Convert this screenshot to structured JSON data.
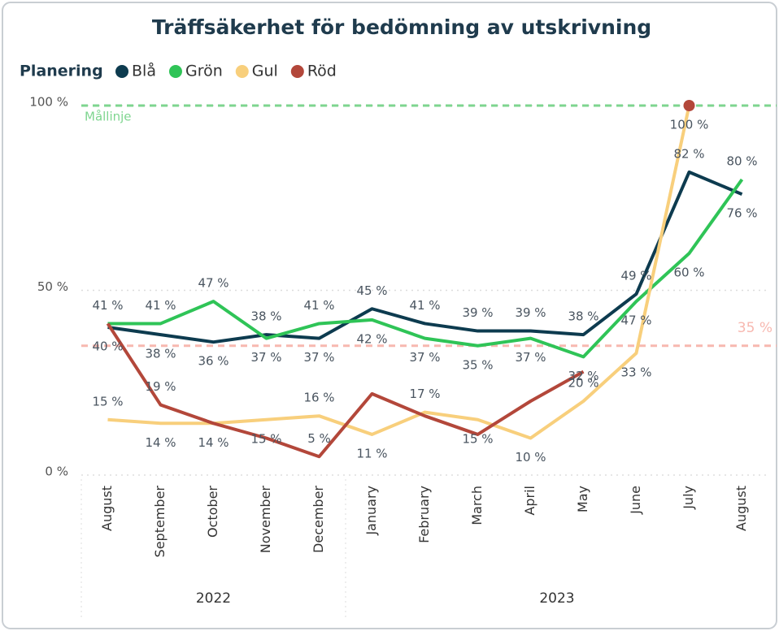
{
  "chart_data": {
    "type": "line",
    "title": "Träffsäkerhet för bedömning av utskrivning",
    "legend_title": "Planering",
    "categories": [
      "August",
      "September",
      "October",
      "November",
      "December",
      "January",
      "February",
      "March",
      "April",
      "May",
      "June",
      "July",
      "August"
    ],
    "year_groups": [
      {
        "label": "2022",
        "count": 5
      },
      {
        "label": "2023",
        "count": 8
      }
    ],
    "ylim": [
      0,
      100
    ],
    "yticks": [
      {
        "value": 0,
        "label": "0 %"
      },
      {
        "value": 50,
        "label": "50 %"
      },
      {
        "value": 100,
        "label": "100 %"
      }
    ],
    "grid": true,
    "reference_lines": [
      {
        "value": 100,
        "label": "Mållinje",
        "color": "#7ed58f"
      },
      {
        "value": 35,
        "label": "35 %",
        "color": "#f7b8b0"
      }
    ],
    "series": [
      {
        "name": "Blå",
        "color": "#0d3b4f",
        "values": [
          40,
          38,
          36,
          38,
          37,
          45,
          41,
          39,
          39,
          38,
          49,
          82,
          76
        ],
        "value_labels": [
          "40 %",
          "38 %",
          "36 %",
          "38 %",
          "37 %",
          "45 %",
          "41 %",
          "39 %",
          "39 %",
          "38 %",
          "49 %",
          "82 %",
          "76 %"
        ]
      },
      {
        "name": "Grön",
        "color": "#2fc457",
        "values": [
          41,
          41,
          47,
          37,
          41,
          42,
          37,
          35,
          37,
          32,
          47,
          60,
          80
        ],
        "value_labels": [
          "41 %",
          "41 %",
          "47 %",
          "37 %",
          "41 %",
          "42 %",
          "37 %",
          "35 %",
          "37 %",
          "32 %",
          "47 %",
          "60 %",
          "80 %"
        ]
      },
      {
        "name": "Gul",
        "color": "#f8cf7c",
        "values": [
          15,
          14,
          14,
          15,
          16,
          11,
          17,
          15,
          10,
          20,
          33,
          100,
          null
        ],
        "value_labels": [
          "15 %",
          "14 %",
          "14 %",
          "15 %",
          "16 %",
          "11 %",
          "17 %",
          "15 %",
          "10 %",
          "20 %",
          "33 %",
          "100 %",
          null
        ]
      },
      {
        "name": "Röd",
        "color": "#b3473a",
        "values": [
          41,
          19,
          14,
          10,
          5,
          22,
          16,
          11,
          20,
          28,
          null,
          100,
          null
        ],
        "value_labels": [
          null,
          "19 %",
          null,
          null,
          "5 %",
          null,
          null,
          null,
          null,
          null,
          null,
          null,
          null
        ]
      }
    ]
  }
}
